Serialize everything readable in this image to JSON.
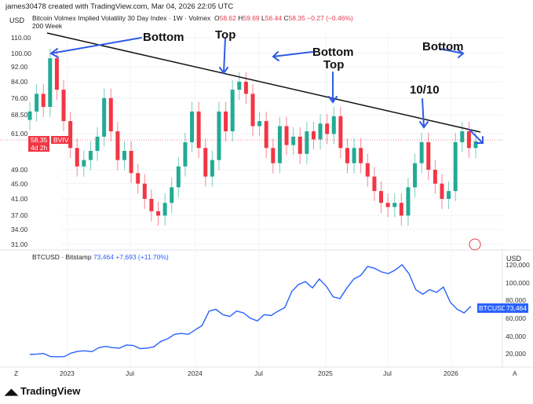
{
  "header": {
    "credit": "james30478 created with TradingView.com, Mar 04, 2026 22:05 UTC"
  },
  "top_pane": {
    "currency": "USD",
    "title": "Bitcoin Volmex Implied Volatility 30 Day Index · 1W · Volmex",
    "o_label": "O",
    "o": "58.62",
    "h_label": "H",
    "h": "59.69",
    "l_label": "L",
    "l": "56.44",
    "c_label": "C",
    "c": "58.35",
    "change": "−0.27 (−0.46%)",
    "indicator": "200 Week",
    "price_badge": "58.35",
    "countdown": "4d 2h",
    "symbol_badge": "BVIV"
  },
  "bottom_pane": {
    "title": "BTCUSD · Bitstamp",
    "last": "73,464",
    "change": "+7,693 (+11.70%)",
    "currency": "USD",
    "badge_symbol": "BTCUSD",
    "badge_value": "73,464"
  },
  "annotations": {
    "a1": "Bottom",
    "a2": "Top",
    "a3": "Bottom",
    "a4": "Top",
    "a5": "10/10",
    "a6": "Bottom"
  },
  "footer": {
    "brand": "TradingView",
    "left_btn": "Z",
    "right_btn": "A"
  },
  "colors": {
    "up": "#22ab94",
    "down": "#f23645",
    "line": "#2962ff",
    "arrow": "#2e5be6"
  },
  "chart_data": [
    {
      "type": "candlestick",
      "title": "Bitcoin Volmex Implied Volatility 30 Day Index",
      "scale": "log",
      "ylim": [
        31,
        110
      ],
      "yticks": [
        "110.00",
        "100.00",
        "92.00",
        "84.00",
        "76.00",
        "68.50",
        "61.00",
        "49.00",
        "45.00",
        "41.00",
        "37.00",
        "34.00",
        "31.00"
      ],
      "xticks": [
        "2023",
        "Jul",
        "2024",
        "Jul",
        "2025",
        "Jul",
        "2026"
      ],
      "closes": [
        70,
        78,
        72,
        97,
        80,
        66,
        56,
        50,
        52,
        55,
        60,
        76,
        62,
        52,
        55,
        48,
        45,
        41,
        38,
        37,
        40,
        44,
        50,
        58,
        70,
        56,
        47,
        52,
        70,
        62,
        80,
        84,
        78,
        64,
        66,
        56,
        51,
        64,
        57,
        60,
        54,
        62,
        59,
        65,
        61,
        68,
        56,
        51,
        56,
        51,
        47,
        43,
        40,
        39,
        40,
        37,
        44,
        51,
        58,
        49,
        45,
        41,
        43,
        58,
        62,
        56,
        58.35
      ]
    },
    {
      "type": "line",
      "title": "BTCUSD · Bitstamp",
      "ylim": [
        0,
        125000
      ],
      "yticks": [
        "120,000",
        "100,000",
        "80,000",
        "60,000",
        "40,000",
        "20,000"
      ],
      "values": [
        19500,
        19800,
        20500,
        17000,
        16800,
        17000,
        21000,
        23000,
        23500,
        22500,
        27000,
        28500,
        27000,
        26500,
        30000,
        29500,
        26000,
        26500,
        28000,
        34000,
        37000,
        42000,
        43000,
        42000,
        47000,
        52000,
        68000,
        70000,
        64000,
        62000,
        68000,
        66000,
        60000,
        57000,
        64000,
        63000,
        68000,
        72000,
        90000,
        98000,
        101000,
        94000,
        104000,
        96000,
        84000,
        82000,
        94000,
        104000,
        108000,
        118000,
        116000,
        112000,
        110000,
        114000,
        120000,
        110000,
        92000,
        87000,
        92000,
        89000,
        95000,
        78000,
        70000,
        66000,
        73464
      ]
    }
  ]
}
